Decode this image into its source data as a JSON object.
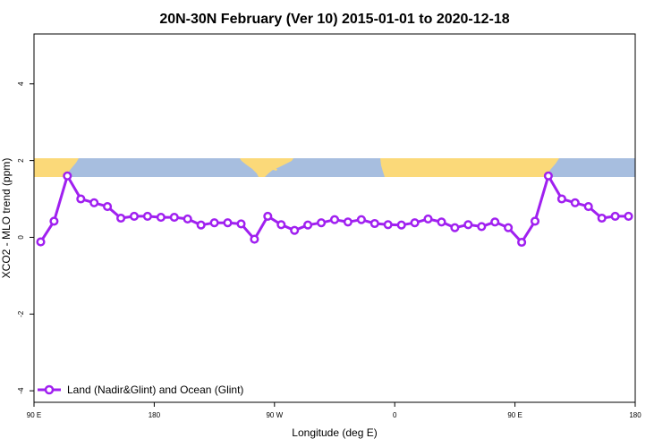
{
  "chart_data": {
    "type": "line",
    "title": "20N-30N February (Ver 10)   2015-01-01 to 2020-12-18",
    "xlabel": "Longitude (deg E)",
    "ylabel": "XCO2 - MLO trend (ppm)",
    "xlim": [
      90,
      540
    ],
    "ylim": [
      -4.3,
      5.3
    ],
    "x_ticks": [
      {
        "value": 90,
        "label": "90 E"
      },
      {
        "value": 180,
        "label": "180"
      },
      {
        "value": 270,
        "label": "90 W"
      },
      {
        "value": 360,
        "label": "0"
      },
      {
        "value": 450,
        "label": "90 E"
      },
      {
        "value": 540,
        "label": "180"
      }
    ],
    "y_ticks": [
      {
        "value": -4,
        "label": "-4"
      },
      {
        "value": -2,
        "label": "-2"
      },
      {
        "value": 0,
        "label": "0"
      },
      {
        "value": 2,
        "label": "2"
      },
      {
        "value": 4,
        "label": "4"
      }
    ],
    "map_strip": {
      "y_range": [
        1.55,
        2.05
      ],
      "ocean_color": "#a7bedf",
      "land_color": "#fbd979"
    },
    "legend_position": "bottom-left",
    "series": [
      {
        "name": "Land (Nadir&Glint) and Ocean (Glint)",
        "color": "#a020f0",
        "x": [
          95,
          105,
          115,
          125,
          135,
          145,
          155,
          165,
          175,
          185,
          195,
          205,
          215,
          225,
          235,
          245,
          255,
          265,
          275,
          285,
          295,
          305,
          315,
          325,
          335,
          345,
          355,
          365,
          375,
          385,
          395,
          405,
          415,
          425,
          435,
          445,
          455,
          465,
          475,
          485,
          495,
          505,
          515,
          525,
          535
        ],
        "y": [
          -0.12,
          0.42,
          1.6,
          1.0,
          0.9,
          0.8,
          0.5,
          0.55,
          0.55,
          0.52,
          0.52,
          0.48,
          0.32,
          0.38,
          0.38,
          0.35,
          -0.05,
          0.55,
          0.33,
          0.18,
          0.32,
          0.38,
          0.46,
          0.4,
          0.46,
          0.36,
          0.33,
          0.32,
          0.38,
          0.48,
          0.4,
          0.25,
          0.33,
          0.28,
          0.4,
          0.25,
          -0.13,
          0.42,
          1.6,
          1.0,
          0.9,
          0.8,
          0.5,
          0.55,
          0.55
        ]
      }
    ]
  }
}
